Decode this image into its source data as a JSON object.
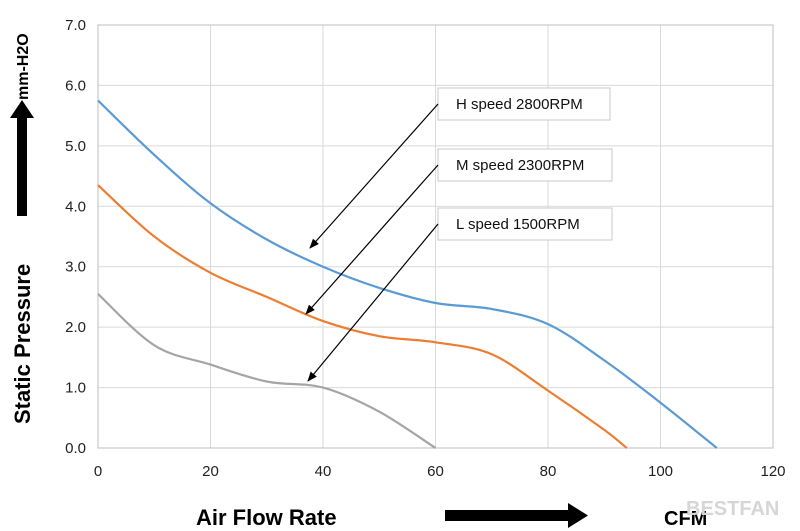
{
  "chart_data": {
    "type": "line",
    "xlabel": "Air Flow Rate",
    "ylabel": "Static Pressure",
    "x_unit": "CFM",
    "y_unit": "mm-H2O",
    "xlim": [
      0,
      120
    ],
    "ylim": [
      0,
      7
    ],
    "x_ticks": [
      "0",
      "20",
      "40",
      "60",
      "80",
      "100",
      "120"
    ],
    "y_ticks": [
      "0.0",
      "1.0",
      "2.0",
      "3.0",
      "4.0",
      "5.0",
      "6.0",
      "7.0"
    ],
    "grid": true,
    "series": [
      {
        "name": "H speed 2800RPM",
        "color": "#5b9bd5",
        "points": [
          [
            0,
            5.75
          ],
          [
            10,
            4.85
          ],
          [
            20,
            4.05
          ],
          [
            30,
            3.45
          ],
          [
            40,
            3.0
          ],
          [
            50,
            2.65
          ],
          [
            60,
            2.4
          ],
          [
            70,
            2.3
          ],
          [
            80,
            2.05
          ],
          [
            90,
            1.45
          ],
          [
            100,
            0.75
          ],
          [
            110,
            0.0
          ]
        ]
      },
      {
        "name": "M speed 2300RPM",
        "color": "#ed7d31",
        "points": [
          [
            0,
            4.35
          ],
          [
            10,
            3.5
          ],
          [
            20,
            2.9
          ],
          [
            30,
            2.5
          ],
          [
            40,
            2.1
          ],
          [
            50,
            1.85
          ],
          [
            60,
            1.75
          ],
          [
            70,
            1.55
          ],
          [
            80,
            0.95
          ],
          [
            90,
            0.3
          ],
          [
            94,
            0.0
          ]
        ]
      },
      {
        "name": "L speed 1500RPM",
        "color": "#a5a5a5",
        "points": [
          [
            0,
            2.55
          ],
          [
            10,
            1.7
          ],
          [
            20,
            1.38
          ],
          [
            30,
            1.1
          ],
          [
            40,
            1.0
          ],
          [
            50,
            0.6
          ],
          [
            60,
            0.0
          ]
        ]
      }
    ],
    "legend": [
      {
        "label": "H speed  2800RPM",
        "series": "H speed 2800RPM"
      },
      {
        "label": "M speed  2300RPM",
        "series": "M speed 2300RPM"
      },
      {
        "label": "L speed  1500RPM",
        "series": "L speed 1500RPM"
      }
    ],
    "watermark": "BESTFAN"
  }
}
